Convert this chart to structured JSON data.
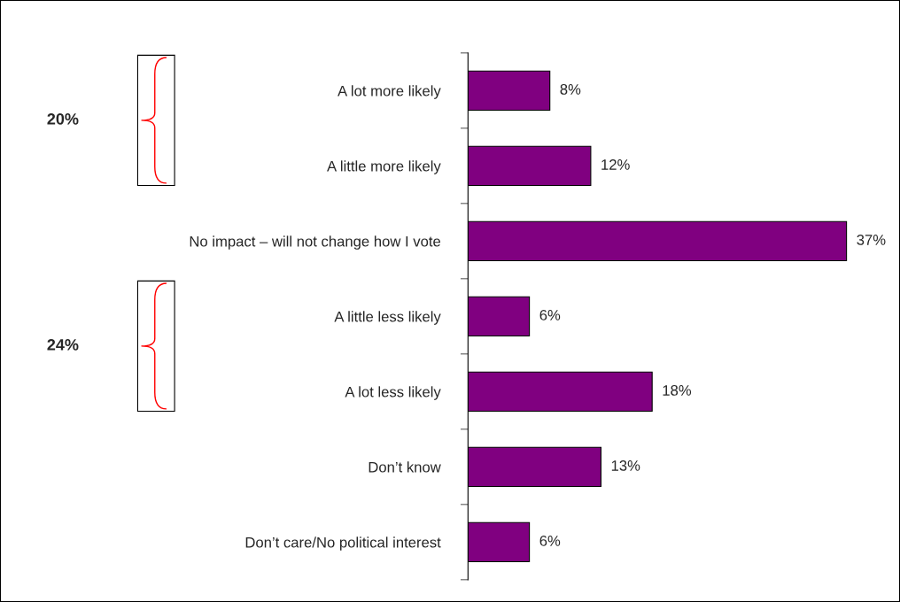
{
  "chart_data": {
    "type": "bar",
    "orientation": "horizontal",
    "categories": [
      "A lot more likely",
      "A little more likely",
      "No impact – will not change how I vote",
      "A little less likely",
      "A lot less likely",
      "Don’t know",
      "Don’t care/No political interest"
    ],
    "values": [
      8,
      12,
      37,
      6,
      18,
      13,
      6
    ],
    "color": "#800080",
    "value_labels": [
      "8%",
      "12%",
      "37%",
      "6%",
      "18%",
      "13%",
      "6%"
    ],
    "annotations": [
      "20%",
      "24%"
    ],
    "grid": false,
    "legend": false
  }
}
